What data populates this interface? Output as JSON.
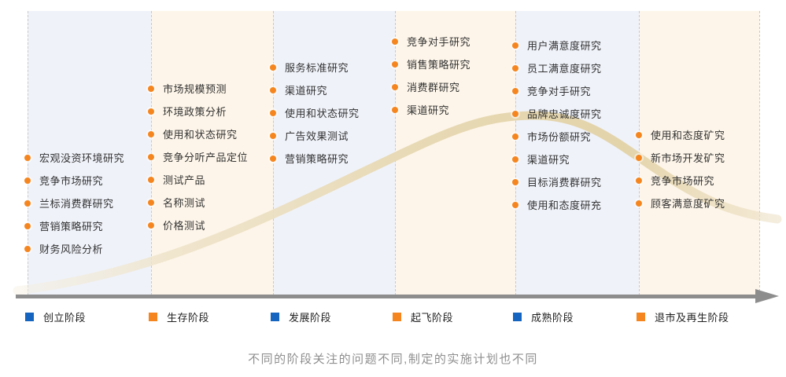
{
  "caption": "不同的阶段关注的问题不同,制定的实施计划也不同",
  "colors": {
    "stage_blue": "#1565c0",
    "stage_orange": "#f5861f",
    "bullet_orange": "#f5861f",
    "column_blue_bg": "#eff2f9",
    "column_cream_bg": "#fdf5e9",
    "axis_gray": "#8d8d8d",
    "curve_beige": "#e8dab6",
    "item_text": "#333333",
    "caption_gray": "#8f8f8f"
  },
  "stages": [
    {
      "label": "创立阶段",
      "swatch_color": "#1565c0",
      "items": [
        "宏观没资环境研究",
        "竞争市场研究",
        "兰标消费群研究",
        "营销策略研究",
        "财务风险分析"
      ]
    },
    {
      "label": "生存阶段",
      "swatch_color": "#f5861f",
      "items": [
        "市场规模预测",
        "环境政策分析",
        "使用和状态研究",
        "竞争分听产品定位",
        "测试产品",
        "名称测试",
        "价格测试"
      ]
    },
    {
      "label": "发展阶段",
      "swatch_color": "#1565c0",
      "items": [
        "服务标准研究",
        "渠道研究",
        "使用和状态研究",
        "广告效果测试",
        "营销策略研究"
      ]
    },
    {
      "label": "起飞阶段",
      "swatch_color": "#f5861f",
      "items": [
        "竞争对手研究",
        "销售策略研究",
        "消费群研究",
        "渠道研究"
      ]
    },
    {
      "label": "成熟阶段",
      "swatch_color": "#1565c0",
      "items": [
        "用户满意度研究",
        "员工满意度研究",
        "竞争对手研究",
        "品牌忠诚度研究",
        "市场份额研究",
        "渠道研究",
        "目标消费群研究",
        "使用和态度研充"
      ]
    },
    {
      "label": "退市及再生阶段",
      "swatch_color": "#f5861f",
      "items": [
        "使用和态度矿究",
        "新市场开发矿究",
        "竞争市场研究",
        "顾客满意度矿究"
      ]
    }
  ]
}
